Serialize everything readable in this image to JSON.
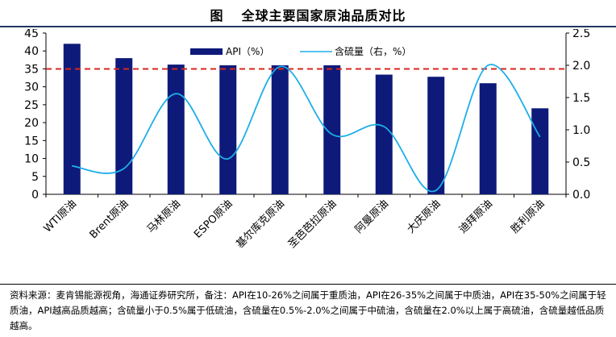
{
  "header": {
    "prefix": "图",
    "title": "全球主要国家原油品质对比"
  },
  "chart_data": {
    "type": "bar+line",
    "categories": [
      "WTI原油",
      "Brent原油",
      "马林原油",
      "ESPO原油",
      "基尔库克原油",
      "圣芭芭拉原油",
      "阿曼原油",
      "大庆原油",
      "迪拜原油",
      "胜利原油"
    ],
    "series": [
      {
        "name": "API（%）",
        "type": "bar",
        "axis": "left",
        "color": "#0d1a7a",
        "values": [
          42,
          38,
          36.2,
          36,
          36,
          36,
          33.4,
          32.8,
          31,
          24
        ]
      },
      {
        "name": "含硫量（右，%）",
        "type": "line",
        "axis": "right",
        "color": "#1eaee8",
        "values": [
          0.44,
          0.4,
          1.56,
          0.55,
          1.98,
          0.93,
          1.05,
          0.06,
          2.0,
          0.89
        ]
      }
    ],
    "reference_line": {
      "axis": "left",
      "value": 35,
      "color": "#d9261c"
    },
    "left_axis": {
      "ylim": [
        0,
        45
      ],
      "ticks": [
        "0",
        "5",
        "10",
        "15",
        "20",
        "25",
        "30",
        "35",
        "40",
        "45"
      ]
    },
    "right_axis": {
      "ylim": [
        0,
        2.5
      ],
      "ticks": [
        "0.0",
        "0.5",
        "1.0",
        "1.5",
        "2.0",
        "2.5"
      ]
    },
    "legend_position": "top-center"
  },
  "footer": {
    "text": "资料来源：麦肯锡能源视角，海通证券研究所，备注：API在10-26%之间属于重质油，API在26-35%之间属于中质油，API在35-50%之间属于轻质油，API越高品质越高；含硫量小于0.5%属于低硫油，含硫量在0.5%-2.0%之间属于中硫油，含硫量在2.0%以上属于高硫油，含硫量越低品质越高。"
  }
}
